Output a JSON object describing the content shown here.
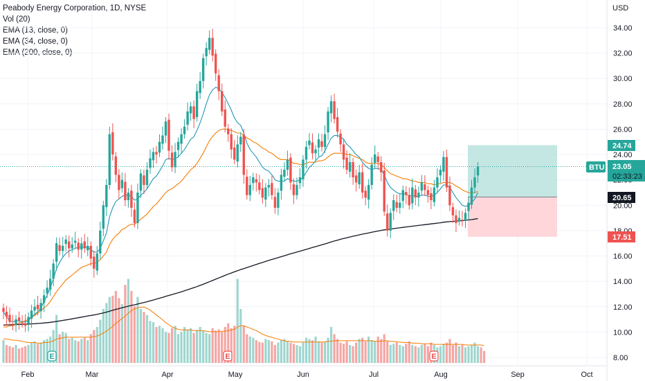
{
  "legend": {
    "title": "Peabody Energy Corporation, 1D, NYSE",
    "vol": "Vol (20)",
    "ema13": "EMA (13, close, 0)",
    "ema34": "EMA (34, close, 0)",
    "ema200": "EMA (200, close, 0)"
  },
  "colors": {
    "up": "#26a69a",
    "down": "#ef5350",
    "vol_up": "#9fd6cf",
    "vol_down": "#f5a6a4",
    "ema13": "#2196b6",
    "ema34": "#f57c00",
    "ema200": "#131722",
    "vol_ma": "#f57c00",
    "target_zone": "#b2dfdb",
    "stop_zone": "#ffcdd2",
    "grid": "#f0f3fa"
  },
  "chart_data": {
    "type": "candlestick",
    "currency": "USD",
    "ylim": [
      7.5,
      35.5
    ],
    "y_ticks": [
      "34.00",
      "32.00",
      "30.00",
      "28.00",
      "26.00",
      "24.00",
      "22.00",
      "20.00",
      "18.00",
      "16.00",
      "14.00",
      "12.00",
      "10.00",
      "8.00"
    ],
    "x_ticks": [
      "Feb",
      "Mar",
      "Apr",
      "May",
      "Jun",
      "Jul",
      "Aug",
      "Sep",
      "Oct"
    ],
    "symbol": "BTU",
    "last_price": "23.05",
    "countdown": "02:33:23",
    "price_labels": {
      "target": "24.74",
      "entry": "20.65",
      "stop": "17.51"
    },
    "position": {
      "target": 24.74,
      "entry": 20.65,
      "stop": 17.51
    },
    "earnings_markers": [
      "E",
      "E",
      "E"
    ],
    "closes": [
      11.6,
      11.2,
      10.8,
      10.6,
      11.0,
      10.9,
      10.7,
      10.5,
      11.2,
      11.7,
      12.0,
      11.8,
      12.3,
      12.9,
      13.5,
      14.2,
      15.4,
      17.0,
      16.4,
      16.8,
      17.3,
      16.6,
      16.9,
      17.2,
      16.5,
      17.0,
      16.6,
      16.8,
      15.8,
      15.0,
      16.2,
      18.0,
      20.0,
      21.6,
      25.6,
      24.0,
      22.4,
      21.2,
      22.0,
      20.4,
      21.0,
      19.8,
      18.6,
      21.0,
      22.5,
      21.6,
      22.8,
      23.7,
      24.2,
      24.0,
      25.0,
      25.5,
      26.6,
      24.3,
      23.0,
      24.2,
      25.0,
      25.6,
      26.2,
      27.4,
      27.8,
      26.8,
      29.0,
      29.8,
      31.6,
      32.4,
      33.2,
      31.8,
      30.4,
      29.0,
      27.4,
      26.2,
      25.6,
      24.4,
      23.6,
      24.8,
      25.4,
      22.4,
      20.8,
      21.6,
      22.2,
      21.8,
      21.2,
      20.6,
      21.4,
      21.6,
      20.8,
      19.8,
      21.0,
      22.4,
      22.8,
      23.6,
      21.8,
      20.8,
      21.6,
      22.2,
      23.6,
      24.6,
      25.1,
      24.1,
      24.4,
      25.2,
      24.6,
      25.6,
      27.4,
      28.2,
      26.8,
      25.8,
      24.8,
      23.6,
      22.8,
      23.4,
      22.2,
      21.8,
      22.6,
      21.0,
      20.6,
      21.6,
      23.2,
      24.0,
      23.4,
      22.6,
      19.5,
      18.0,
      19.4,
      20.4,
      19.8,
      20.2,
      21.2,
      20.8,
      20.0,
      21.4,
      20.6,
      21.0,
      21.8,
      21.2,
      20.8,
      20.4,
      21.4,
      22.2,
      22.8,
      23.8,
      21.4,
      20.0,
      19.2,
      18.6,
      19.0,
      18.8,
      19.4,
      20.2,
      21.4,
      22.2,
      23.05
    ],
    "ema13": [
      11.6,
      11.2,
      10.9,
      10.8,
      10.9,
      10.9,
      10.8,
      10.8,
      10.9,
      11.2,
      11.4,
      11.6,
      11.9,
      12.4,
      12.9,
      13.5,
      14.2,
      15.0,
      15.5,
      15.9,
      16.2,
      16.4,
      16.5,
      16.6,
      16.7,
      16.7,
      16.7,
      16.7,
      16.5,
      16.3,
      16.3,
      16.6,
      17.2,
      17.8,
      19.1,
      19.8,
      20.3,
      20.5,
      20.7,
      20.8,
      20.8,
      20.7,
      20.4,
      20.5,
      20.8,
      21.0,
      21.3,
      21.7,
      22.1,
      22.3,
      22.7,
      23.1,
      23.6,
      23.7,
      23.6,
      23.7,
      23.8,
      24.1,
      24.4,
      24.8,
      25.2,
      25.4,
      25.9,
      26.5,
      27.2,
      28.0,
      28.7,
      29.1,
      29.3,
      29.2,
      28.9,
      28.5,
      28.0,
      27.5,
      26.9,
      26.5,
      26.3,
      25.7,
      24.9,
      24.4,
      24.1,
      23.8,
      23.4,
      23.0,
      22.8,
      22.7,
      22.4,
      22.0,
      21.9,
      21.9,
      21.9,
      22.1,
      22.0,
      21.9,
      21.9,
      22.0,
      22.2,
      22.6,
      23.0,
      23.2,
      23.5,
      23.8,
      23.9,
      24.3,
      24.8,
      25.3,
      25.5,
      25.5,
      25.4,
      25.2,
      24.8,
      24.6,
      24.3,
      24.0,
      23.8,
      23.4,
      23.1,
      22.9,
      22.8,
      22.9,
      22.9,
      22.8,
      22.4,
      21.8,
      21.4,
      21.2,
      21.0,
      20.9,
      20.9,
      20.9,
      20.7,
      20.8,
      20.7,
      20.7,
      20.8,
      20.8,
      20.7,
      20.7,
      20.8,
      21.0,
      21.3,
      21.6,
      21.6,
      21.4,
      21.0,
      20.6,
      20.3,
      20.0,
      19.9,
      20.0,
      20.2,
      20.5,
      21.0
    ],
    "ema34": [
      10.4,
      10.4,
      10.5,
      10.5,
      10.6,
      10.7,
      10.8,
      10.9,
      11.0,
      11.2,
      11.3,
      11.5,
      11.7,
      11.9,
      12.1,
      12.4,
      12.8,
      13.2,
      13.5,
      13.8,
      14.1,
      14.3,
      14.5,
      14.7,
      14.9,
      15.1,
      15.2,
      15.3,
      15.4,
      15.4,
      15.5,
      15.7,
      16.0,
      16.3,
      16.9,
      17.3,
      17.6,
      17.8,
      18.1,
      18.2,
      18.4,
      18.5,
      18.5,
      18.7,
      18.9,
      19.1,
      19.3,
      19.6,
      19.9,
      20.1,
      20.4,
      20.7,
      21.0,
      21.2,
      21.3,
      21.5,
      21.7,
      21.9,
      22.2,
      22.5,
      22.8,
      23.0,
      23.3,
      23.7,
      24.1,
      24.6,
      25.1,
      25.4,
      25.7,
      25.9,
      26.0,
      26.0,
      26.0,
      25.9,
      25.8,
      25.7,
      25.7,
      25.5,
      25.3,
      25.2,
      25.0,
      24.9,
      24.7,
      24.5,
      24.4,
      24.2,
      24.1,
      23.9,
      23.7,
      23.6,
      23.6,
      23.6,
      23.5,
      23.3,
      23.3,
      23.2,
      23.2,
      23.3,
      23.4,
      23.4,
      23.4,
      23.5,
      23.5,
      23.6,
      23.8,
      24.0,
      24.1,
      24.1,
      24.1,
      24.1,
      24.0,
      24.0,
      23.9,
      23.8,
      23.7,
      23.6,
      23.4,
      23.3,
      23.3,
      23.3,
      23.3,
      23.2,
      23.0,
      22.7,
      22.5,
      22.4,
      22.3,
      22.2,
      22.1,
      22.1,
      22.0,
      21.9,
      21.9,
      21.8,
      21.8,
      21.8,
      21.7,
      21.7,
      21.6,
      21.7,
      21.7,
      21.8,
      21.8,
      21.8,
      21.7,
      21.5,
      21.4,
      21.2,
      21.1,
      21.0,
      21.0,
      21.0,
      21.1
    ],
    "ema200": [
      10.55,
      10.56,
      10.57,
      10.58,
      10.59,
      10.6,
      10.61,
      10.62,
      10.63,
      10.65,
      10.66,
      10.68,
      10.7,
      10.72,
      10.74,
      10.77,
      10.8,
      10.84,
      10.88,
      10.92,
      10.96,
      11.0,
      11.04,
      11.09,
      11.13,
      11.18,
      11.22,
      11.27,
      11.31,
      11.35,
      11.4,
      11.45,
      11.51,
      11.57,
      11.65,
      11.72,
      11.79,
      11.85,
      11.92,
      11.98,
      12.04,
      12.1,
      12.15,
      12.21,
      12.27,
      12.33,
      12.39,
      12.46,
      12.53,
      12.6,
      12.67,
      12.74,
      12.82,
      12.89,
      12.96,
      13.03,
      13.1,
      13.18,
      13.26,
      13.34,
      13.42,
      13.5,
      13.59,
      13.68,
      13.77,
      13.87,
      13.97,
      14.07,
      14.17,
      14.27,
      14.37,
      14.47,
      14.57,
      14.66,
      14.75,
      14.84,
      14.93,
      15.01,
      15.09,
      15.17,
      15.25,
      15.33,
      15.41,
      15.49,
      15.57,
      15.65,
      15.73,
      15.8,
      15.87,
      15.95,
      16.02,
      16.1,
      16.17,
      16.24,
      16.31,
      16.38,
      16.45,
      16.52,
      16.6,
      16.67,
      16.74,
      16.81,
      16.88,
      16.95,
      17.03,
      17.11,
      17.18,
      17.25,
      17.32,
      17.38,
      17.44,
      17.5,
      17.56,
      17.61,
      17.67,
      17.72,
      17.77,
      17.82,
      17.87,
      17.92,
      17.97,
      18.02,
      18.06,
      18.09,
      18.12,
      18.16,
      18.19,
      18.22,
      18.26,
      18.29,
      18.32,
      18.35,
      18.38,
      18.41,
      18.44,
      18.47,
      18.5,
      18.53,
      18.56,
      18.59,
      18.62,
      18.66,
      18.69,
      18.71,
      18.73,
      18.75,
      18.77,
      18.79,
      18.81,
      18.84,
      18.87,
      18.91,
      18.95
    ],
    "volume": [
      38,
      30,
      28,
      26,
      30,
      24,
      26,
      28,
      30,
      34,
      36,
      32,
      34,
      38,
      40,
      44,
      55,
      80,
      48,
      52,
      50,
      40,
      42,
      38,
      36,
      40,
      42,
      38,
      48,
      55,
      60,
      72,
      90,
      100,
      110,
      112,
      120,
      108,
      98,
      130,
      140,
      120,
      95,
      110,
      90,
      85,
      80,
      70,
      68,
      60,
      62,
      58,
      52,
      50,
      58,
      62,
      48,
      52,
      60,
      56,
      58,
      50,
      55,
      60,
      54,
      50,
      48,
      58,
      54,
      56,
      52,
      60,
      66,
      58,
      62,
      140,
      90,
      62,
      48,
      44,
      42,
      38,
      35,
      34,
      40,
      38,
      36,
      30,
      34,
      38,
      40,
      36,
      34,
      32,
      30,
      28,
      34,
      42,
      40,
      38,
      44,
      36,
      34,
      36,
      42,
      60,
      48,
      40,
      34,
      32,
      36,
      30,
      28,
      34,
      40,
      42,
      36,
      44,
      38,
      36,
      44,
      40,
      48,
      36,
      30,
      32,
      34,
      30,
      28,
      32,
      36,
      30,
      28,
      26,
      30,
      32,
      28,
      34,
      30,
      26,
      28,
      32,
      34,
      40,
      30,
      34,
      28,
      30,
      26,
      28,
      30,
      34,
      28,
      26,
      20
    ],
    "volume_ma": [
      40,
      40,
      39,
      38,
      38,
      37,
      36,
      35,
      34,
      34,
      34,
      33,
      33,
      34,
      34,
      35,
      37,
      40,
      41,
      42,
      43,
      43,
      43,
      43,
      43,
      43,
      43,
      43,
      43,
      44,
      45,
      47,
      50,
      53,
      57,
      61,
      66,
      70,
      74,
      78,
      83,
      87,
      90,
      92,
      93,
      93,
      91,
      88,
      84,
      80,
      76,
      72,
      67,
      64,
      60,
      58,
      56,
      55,
      55,
      55,
      55,
      54,
      54,
      54,
      54,
      53,
      52,
      52,
      52,
      52,
      53,
      53,
      54,
      55,
      56,
      60,
      62,
      62,
      60,
      58,
      56,
      54,
      51,
      48,
      46,
      44,
      43,
      41,
      40,
      38,
      37,
      36,
      36,
      35,
      35,
      35,
      35,
      35,
      35,
      35,
      35,
      35,
      35,
      35,
      36,
      36,
      37,
      37,
      37,
      37,
      37,
      37,
      37,
      37,
      37,
      37,
      37,
      37,
      37,
      36,
      36,
      36,
      37,
      37,
      36,
      36,
      35,
      35,
      34,
      34,
      34,
      33,
      33,
      33,
      32,
      32,
      32,
      32,
      31,
      31,
      31,
      31,
      31,
      31,
      31,
      31,
      31,
      31,
      30,
      30,
      30,
      30,
      30,
      30,
      29
    ]
  }
}
